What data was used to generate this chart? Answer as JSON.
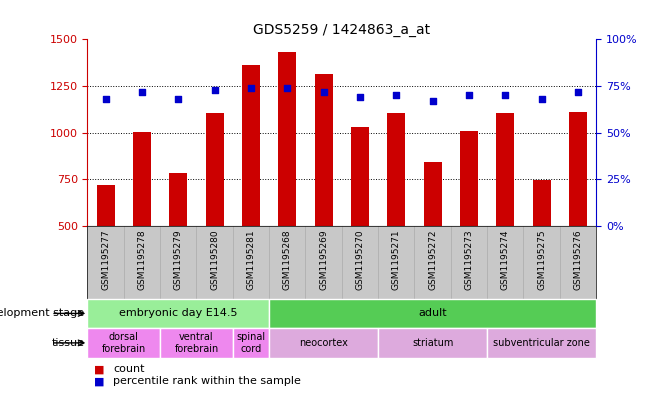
{
  "title": "GDS5259 / 1424863_a_at",
  "samples": [
    "GSM1195277",
    "GSM1195278",
    "GSM1195279",
    "GSM1195280",
    "GSM1195281",
    "GSM1195268",
    "GSM1195269",
    "GSM1195270",
    "GSM1195271",
    "GSM1195272",
    "GSM1195273",
    "GSM1195274",
    "GSM1195275",
    "GSM1195276"
  ],
  "counts": [
    720,
    1005,
    785,
    1105,
    1360,
    1430,
    1315,
    1030,
    1105,
    845,
    1010,
    1105,
    745,
    1110
  ],
  "percentiles": [
    68,
    72,
    68,
    73,
    74,
    74,
    72,
    69,
    70,
    67,
    70,
    70,
    68,
    72
  ],
  "ylim_left": [
    500,
    1500
  ],
  "ylim_right": [
    0,
    100
  ],
  "yticks_left": [
    500,
    750,
    1000,
    1250,
    1500
  ],
  "yticks_right": [
    0,
    25,
    50,
    75,
    100
  ],
  "bar_color": "#cc0000",
  "dot_color": "#0000cc",
  "gray_bg": "#c8c8c8",
  "development_stage_groups": [
    {
      "label": "embryonic day E14.5",
      "start": 0,
      "end": 4,
      "color": "#99ee99"
    },
    {
      "label": "adult",
      "start": 5,
      "end": 13,
      "color": "#55cc55"
    }
  ],
  "tissue_groups": [
    {
      "label": "dorsal\nforebrain",
      "start": 0,
      "end": 1,
      "color": "#ee88ee"
    },
    {
      "label": "ventral\nforebrain",
      "start": 2,
      "end": 3,
      "color": "#ee88ee"
    },
    {
      "label": "spinal\ncord",
      "start": 4,
      "end": 4,
      "color": "#ee88ee"
    },
    {
      "label": "neocortex",
      "start": 5,
      "end": 7,
      "color": "#ddaadd"
    },
    {
      "label": "striatum",
      "start": 8,
      "end": 10,
      "color": "#ddaadd"
    },
    {
      "label": "subventricular zone",
      "start": 11,
      "end": 13,
      "color": "#ddaadd"
    }
  ],
  "left_axis_color": "#cc0000",
  "right_axis_color": "#0000cc",
  "grid_yticks": [
    750,
    1000,
    1250
  ]
}
